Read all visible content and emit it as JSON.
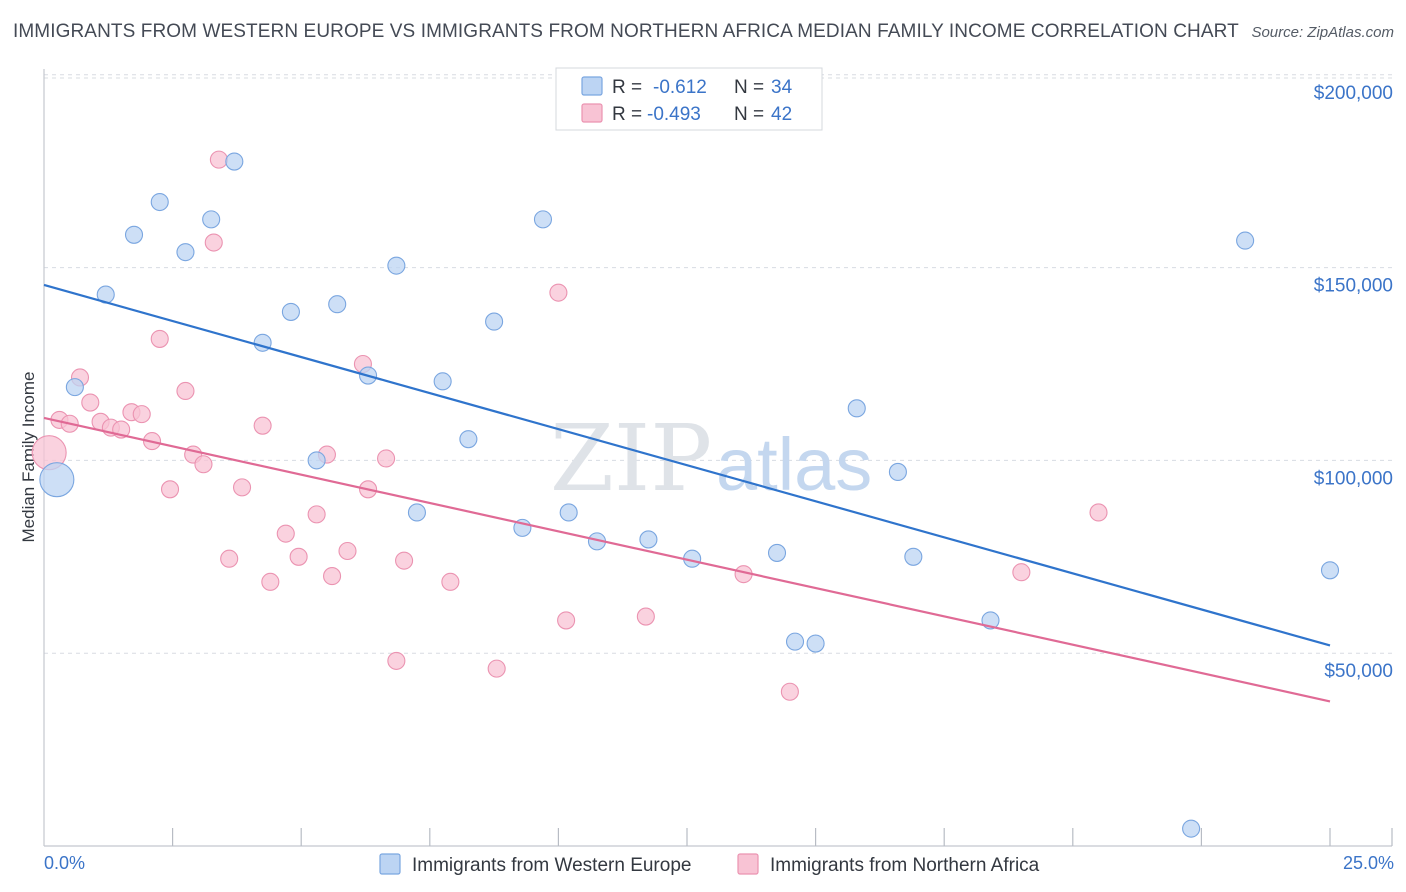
{
  "header": {
    "title": "IMMIGRANTS FROM WESTERN EUROPE VS IMMIGRANTS FROM NORTHERN AFRICA MEDIAN FAMILY INCOME CORRELATION CHART",
    "source": "Source: ZipAtlas.com"
  },
  "watermark": {
    "zip": "ZIP",
    "atlas": "atlas"
  },
  "legend": {
    "r_label": "R =",
    "n_label": "N =",
    "entries": [
      {
        "r": "-0.612",
        "n": "34"
      },
      {
        "r": "-0.493",
        "n": "42"
      }
    ]
  },
  "colors": {
    "blue_fill": "#bcd4f3",
    "blue_stroke": "#7aa6e0",
    "blue_line": "#2f74cc",
    "pink_fill": "#f8c3d4",
    "pink_stroke": "#eb93b1",
    "pink_line": "#e06a95",
    "grid": "#d8dce2",
    "axis_text": "#3b74c8"
  },
  "chart_data": {
    "type": "scatter",
    "ylabel": "Median Family Income",
    "xlim": [
      0,
      25
    ],
    "ylim": [
      0,
      205000
    ],
    "x_tick_labels": [
      "0.0%",
      "25.0%"
    ],
    "y_ticks": [
      {
        "value": 50000,
        "label": "$50,000"
      },
      {
        "value": 100000,
        "label": "$100,000"
      },
      {
        "value": 150000,
        "label": "$150,000"
      },
      {
        "value": 200000,
        "label": "$200,000"
      }
    ],
    "grid": "horizontal-dashed",
    "legend_position": "top-center",
    "series": [
      {
        "name": "Immigrants from Western Europe",
        "color": "blue",
        "trend": {
          "x": [
            0,
            25
          ],
          "y": [
            145500,
            52000
          ]
        },
        "points": [
          {
            "x": 0.25,
            "y": 95000,
            "big": true
          },
          {
            "x": 0.6,
            "y": 119000
          },
          {
            "x": 1.2,
            "y": 143000
          },
          {
            "x": 1.75,
            "y": 158500
          },
          {
            "x": 2.25,
            "y": 167000
          },
          {
            "x": 2.75,
            "y": 154000
          },
          {
            "x": 3.25,
            "y": 162500
          },
          {
            "x": 3.7,
            "y": 177500
          },
          {
            "x": 4.25,
            "y": 130500
          },
          {
            "x": 4.8,
            "y": 138500
          },
          {
            "x": 5.3,
            "y": 100000
          },
          {
            "x": 5.7,
            "y": 140500
          },
          {
            "x": 6.3,
            "y": 122000
          },
          {
            "x": 6.85,
            "y": 150500
          },
          {
            "x": 7.25,
            "y": 86500
          },
          {
            "x": 7.75,
            "y": 120500
          },
          {
            "x": 8.25,
            "y": 105500
          },
          {
            "x": 8.75,
            "y": 136000
          },
          {
            "x": 9.3,
            "y": 82500
          },
          {
            "x": 9.7,
            "y": 162500
          },
          {
            "x": 10.2,
            "y": 86500
          },
          {
            "x": 10.75,
            "y": 79000
          },
          {
            "x": 11.75,
            "y": 79500
          },
          {
            "x": 12.6,
            "y": 74500
          },
          {
            "x": 14.25,
            "y": 76000
          },
          {
            "x": 14.6,
            "y": 53000
          },
          {
            "x": 15.0,
            "y": 52500
          },
          {
            "x": 15.8,
            "y": 113500
          },
          {
            "x": 16.6,
            "y": 97000
          },
          {
            "x": 16.9,
            "y": 75000
          },
          {
            "x": 18.4,
            "y": 58500
          },
          {
            "x": 22.3,
            "y": 4500
          },
          {
            "x": 23.35,
            "y": 157000
          },
          {
            "x": 25.0,
            "y": 71500
          }
        ]
      },
      {
        "name": "Immigrants from Northern Africa",
        "color": "pink",
        "trend": {
          "x": [
            0,
            25
          ],
          "y": [
            111000,
            37500
          ]
        },
        "points": [
          {
            "x": 0.1,
            "y": 102000,
            "big": true
          },
          {
            "x": 0.3,
            "y": 110500
          },
          {
            "x": 0.5,
            "y": 109500
          },
          {
            "x": 0.7,
            "y": 121500
          },
          {
            "x": 0.9,
            "y": 115000
          },
          {
            "x": 1.1,
            "y": 110000
          },
          {
            "x": 1.3,
            "y": 108500
          },
          {
            "x": 1.5,
            "y": 108000
          },
          {
            "x": 1.7,
            "y": 112500
          },
          {
            "x": 1.9,
            "y": 112000
          },
          {
            "x": 2.1,
            "y": 105000
          },
          {
            "x": 2.25,
            "y": 131500
          },
          {
            "x": 2.45,
            "y": 92500
          },
          {
            "x": 2.75,
            "y": 118000
          },
          {
            "x": 2.9,
            "y": 101500
          },
          {
            "x": 3.1,
            "y": 99000
          },
          {
            "x": 3.3,
            "y": 156500
          },
          {
            "x": 3.4,
            "y": 178000
          },
          {
            "x": 3.6,
            "y": 74500
          },
          {
            "x": 3.85,
            "y": 93000
          },
          {
            "x": 4.25,
            "y": 109000
          },
          {
            "x": 4.4,
            "y": 68500
          },
          {
            "x": 4.7,
            "y": 81000
          },
          {
            "x": 4.95,
            "y": 75000
          },
          {
            "x": 5.3,
            "y": 86000
          },
          {
            "x": 5.5,
            "y": 101500
          },
          {
            "x": 5.6,
            "y": 70000
          },
          {
            "x": 5.9,
            "y": 76500
          },
          {
            "x": 6.2,
            "y": 125000
          },
          {
            "x": 6.3,
            "y": 92500
          },
          {
            "x": 6.65,
            "y": 100500
          },
          {
            "x": 6.85,
            "y": 48000
          },
          {
            "x": 7.0,
            "y": 74000
          },
          {
            "x": 7.9,
            "y": 68500
          },
          {
            "x": 8.8,
            "y": 46000
          },
          {
            "x": 10.0,
            "y": 143500
          },
          {
            "x": 10.15,
            "y": 58500
          },
          {
            "x": 11.7,
            "y": 59500
          },
          {
            "x": 13.6,
            "y": 70500
          },
          {
            "x": 14.5,
            "y": 40000
          },
          {
            "x": 19.0,
            "y": 71000
          },
          {
            "x": 20.5,
            "y": 86500
          }
        ]
      }
    ]
  }
}
